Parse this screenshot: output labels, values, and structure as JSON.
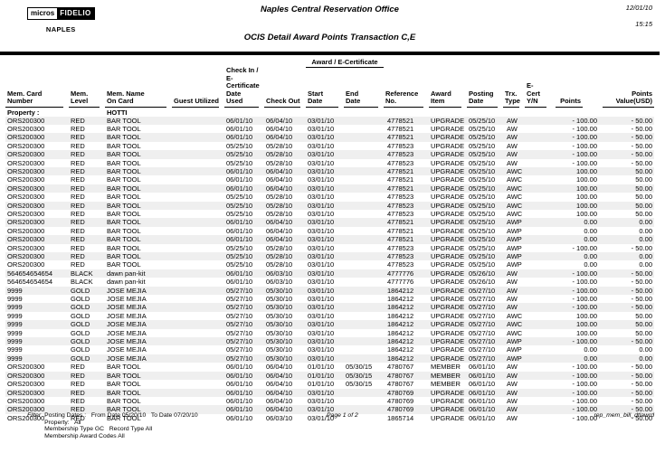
{
  "meta": {
    "date": "12/01/10",
    "time": "15:15"
  },
  "logo": {
    "brand_left": "micros",
    "brand_right": "FIDELIO",
    "property": "NAPLES"
  },
  "titles": {
    "office": "Naples Central Reservation Office",
    "report": "OCIS Detail Award Points Transaction C,E"
  },
  "table": {
    "group_header": "Award / E-Certificate",
    "columns": [
      "Mem. Card\nNumber",
      "Mem.\nLevel",
      "Mem. Name\nOn Card",
      "Guest Utilized",
      "Check In /\nE-Certificate\nDate Used",
      "Check Out",
      "Start\nDate",
      "End\nDate",
      "Reference No.",
      "Award\nItem",
      "Posting\nDate",
      "Trx.\nType",
      "E-Cert\nY/N",
      "Points",
      "Points Value(USD)"
    ],
    "property_label": "Property :",
    "property_value": "HOTTI",
    "rows": [
      [
        "ORS200300",
        "RED",
        "BAR TOOL",
        "",
        "06/01/10",
        "06/04/10",
        "03/01/10",
        "",
        "4778521",
        "UPGRADE",
        "05/25/10",
        "AW",
        "",
        "- 100.00",
        "- 50.00"
      ],
      [
        "ORS200300",
        "RED",
        "BAR TOOL",
        "",
        "06/01/10",
        "06/04/10",
        "03/01/10",
        "",
        "4778521",
        "UPGRADE",
        "05/25/10",
        "AW",
        "",
        "- 100.00",
        "- 50.00"
      ],
      [
        "ORS200300",
        "RED",
        "BAR TOOL",
        "",
        "06/01/10",
        "06/04/10",
        "03/01/10",
        "",
        "4778521",
        "UPGRADE",
        "05/25/10",
        "AW",
        "",
        "- 100.00",
        "- 50.00"
      ],
      [
        "ORS200300",
        "RED",
        "BAR TOOL",
        "",
        "05/25/10",
        "05/28/10",
        "03/01/10",
        "",
        "4778523",
        "UPGRADE",
        "05/25/10",
        "AW",
        "",
        "- 100.00",
        "- 50.00"
      ],
      [
        "ORS200300",
        "RED",
        "BAR TOOL",
        "",
        "05/25/10",
        "05/28/10",
        "03/01/10",
        "",
        "4778523",
        "UPGRADE",
        "05/25/10",
        "AW",
        "",
        "- 100.00",
        "- 50.00"
      ],
      [
        "ORS200300",
        "RED",
        "BAR TOOL",
        "",
        "05/25/10",
        "05/28/10",
        "03/01/10",
        "",
        "4778523",
        "UPGRADE",
        "05/25/10",
        "AW",
        "",
        "- 100.00",
        "- 50.00"
      ],
      [
        "ORS200300",
        "RED",
        "BAR TOOL",
        "",
        "06/01/10",
        "06/04/10",
        "03/01/10",
        "",
        "4778521",
        "UPGRADE",
        "05/25/10",
        "AWC",
        "",
        "100.00",
        "50.00"
      ],
      [
        "ORS200300",
        "RED",
        "BAR TOOL",
        "",
        "06/01/10",
        "06/04/10",
        "03/01/10",
        "",
        "4778521",
        "UPGRADE",
        "05/25/10",
        "AWC",
        "",
        "100.00",
        "50.00"
      ],
      [
        "ORS200300",
        "RED",
        "BAR TOOL",
        "",
        "06/01/10",
        "06/04/10",
        "03/01/10",
        "",
        "4778521",
        "UPGRADE",
        "05/25/10",
        "AWC",
        "",
        "100.00",
        "50.00"
      ],
      [
        "ORS200300",
        "RED",
        "BAR TOOL",
        "",
        "05/25/10",
        "05/28/10",
        "03/01/10",
        "",
        "4778523",
        "UPGRADE",
        "05/25/10",
        "AWC",
        "",
        "100.00",
        "50.00"
      ],
      [
        "ORS200300",
        "RED",
        "BAR TOOL",
        "",
        "05/25/10",
        "05/28/10",
        "03/01/10",
        "",
        "4778523",
        "UPGRADE",
        "05/25/10",
        "AWC",
        "",
        "100.00",
        "50.00"
      ],
      [
        "ORS200300",
        "RED",
        "BAR TOOL",
        "",
        "05/25/10",
        "05/28/10",
        "03/01/10",
        "",
        "4778523",
        "UPGRADE",
        "05/25/10",
        "AWC",
        "",
        "100.00",
        "50.00"
      ],
      [
        "ORS200300",
        "RED",
        "BAR TOOL",
        "",
        "06/01/10",
        "06/04/10",
        "03/01/10",
        "",
        "4778521",
        "UPGRADE",
        "05/25/10",
        "AWP",
        "",
        "0.00",
        "0.00"
      ],
      [
        "ORS200300",
        "RED",
        "BAR TOOL",
        "",
        "06/01/10",
        "06/04/10",
        "03/01/10",
        "",
        "4778521",
        "UPGRADE",
        "05/25/10",
        "AWP",
        "",
        "0.00",
        "0.00"
      ],
      [
        "ORS200300",
        "RED",
        "BAR TOOL",
        "",
        "06/01/10",
        "06/04/10",
        "03/01/10",
        "",
        "4778521",
        "UPGRADE",
        "05/25/10",
        "AWP",
        "",
        "0.00",
        "0.00"
      ],
      [
        "ORS200300",
        "RED",
        "BAR TOOL",
        "",
        "05/25/10",
        "05/28/10",
        "03/01/10",
        "",
        "4778523",
        "UPGRADE",
        "05/25/10",
        "AWP",
        "",
        "- 100.00",
        "- 50.00"
      ],
      [
        "ORS200300",
        "RED",
        "BAR TOOL",
        "",
        "05/25/10",
        "05/28/10",
        "03/01/10",
        "",
        "4778523",
        "UPGRADE",
        "05/25/10",
        "AWP",
        "",
        "0.00",
        "0.00"
      ],
      [
        "ORS200300",
        "RED",
        "BAR TOOL",
        "",
        "05/25/10",
        "05/28/10",
        "03/01/10",
        "",
        "4778523",
        "UPGRADE",
        "05/25/10",
        "AWP",
        "",
        "0.00",
        "0.00"
      ],
      [
        "564654654654",
        "BLACK",
        "dawn pan-kit",
        "",
        "06/01/10",
        "06/03/10",
        "03/01/10",
        "",
        "4777776",
        "UPGRADE",
        "05/26/10",
        "AW",
        "",
        "- 100.00",
        "- 50.00"
      ],
      [
        "564654654654",
        "BLACK",
        "dawn pan-kit",
        "",
        "06/01/10",
        "06/03/10",
        "03/01/10",
        "",
        "4777776",
        "UPGRADE",
        "05/26/10",
        "AW",
        "",
        "- 100.00",
        "- 50.00"
      ],
      [
        "9999",
        "GOLD",
        "JOSE MEJIA",
        "",
        "05/27/10",
        "05/30/10",
        "03/01/10",
        "",
        "1864212",
        "UPGRADE",
        "05/27/10",
        "AW",
        "",
        "- 100.00",
        "- 50.00"
      ],
      [
        "9999",
        "GOLD",
        "JOSE MEJIA",
        "",
        "05/27/10",
        "05/30/10",
        "03/01/10",
        "",
        "1864212",
        "UPGRADE",
        "05/27/10",
        "AW",
        "",
        "- 100.00",
        "- 50.00"
      ],
      [
        "9999",
        "GOLD",
        "JOSE MEJIA",
        "",
        "05/27/10",
        "05/30/10",
        "03/01/10",
        "",
        "1864212",
        "UPGRADE",
        "05/27/10",
        "AW",
        "",
        "- 100.00",
        "- 50.00"
      ],
      [
        "9999",
        "GOLD",
        "JOSE MEJIA",
        "",
        "05/27/10",
        "05/30/10",
        "03/01/10",
        "",
        "1864212",
        "UPGRADE",
        "05/27/10",
        "AWC",
        "",
        "100.00",
        "50.00"
      ],
      [
        "9999",
        "GOLD",
        "JOSE MEJIA",
        "",
        "05/27/10",
        "05/30/10",
        "03/01/10",
        "",
        "1864212",
        "UPGRADE",
        "05/27/10",
        "AWC",
        "",
        "100.00",
        "50.00"
      ],
      [
        "9999",
        "GOLD",
        "JOSE MEJIA",
        "",
        "05/27/10",
        "05/30/10",
        "03/01/10",
        "",
        "1864212",
        "UPGRADE",
        "05/27/10",
        "AWC",
        "",
        "100.00",
        "50.00"
      ],
      [
        "9999",
        "GOLD",
        "JOSE MEJIA",
        "",
        "05/27/10",
        "05/30/10",
        "03/01/10",
        "",
        "1864212",
        "UPGRADE",
        "05/27/10",
        "AWP",
        "",
        "- 100.00",
        "- 50.00"
      ],
      [
        "9999",
        "GOLD",
        "JOSE MEJIA",
        "",
        "05/27/10",
        "05/30/10",
        "03/01/10",
        "",
        "1864212",
        "UPGRADE",
        "05/27/10",
        "AWP",
        "",
        "0.00",
        "0.00"
      ],
      [
        "9999",
        "GOLD",
        "JOSE MEJIA",
        "",
        "05/27/10",
        "05/30/10",
        "03/01/10",
        "",
        "1864212",
        "UPGRADE",
        "05/27/10",
        "AWP",
        "",
        "0.00",
        "0.00"
      ],
      [
        "ORS200300",
        "RED",
        "BAR TOOL",
        "",
        "06/01/10",
        "06/04/10",
        "01/01/10",
        "05/30/15",
        "4780767",
        "MEMBER",
        "06/01/10",
        "AW",
        "",
        "- 100.00",
        "- 50.00"
      ],
      [
        "ORS200300",
        "RED",
        "BAR TOOL",
        "",
        "06/01/10",
        "06/04/10",
        "01/01/10",
        "05/30/15",
        "4780767",
        "MEMBER",
        "06/01/10",
        "AW",
        "",
        "- 100.00",
        "- 50.00"
      ],
      [
        "ORS200300",
        "RED",
        "BAR TOOL",
        "",
        "06/01/10",
        "06/04/10",
        "01/01/10",
        "05/30/15",
        "4780767",
        "MEMBER",
        "06/01/10",
        "AW",
        "",
        "- 100.00",
        "- 50.00"
      ],
      [
        "ORS200300",
        "RED",
        "BAR TOOL",
        "",
        "06/01/10",
        "06/04/10",
        "03/01/10",
        "",
        "4780769",
        "UPGRADE",
        "06/01/10",
        "AW",
        "",
        "- 100.00",
        "- 50.00"
      ],
      [
        "ORS200300",
        "RED",
        "BAR TOOL",
        "",
        "06/01/10",
        "06/04/10",
        "03/01/10",
        "",
        "4780769",
        "UPGRADE",
        "06/01/10",
        "AW",
        "",
        "- 100.00",
        "- 50.00"
      ],
      [
        "ORS200300",
        "RED",
        "BAR TOOL",
        "",
        "06/01/10",
        "06/04/10",
        "03/01/10",
        "",
        "4780769",
        "UPGRADE",
        "06/01/10",
        "AW",
        "",
        "- 100.00",
        "- 50.00"
      ],
      [
        "ORS200300",
        "RED",
        "BAR TOOL",
        "",
        "06/01/10",
        "06/03/10",
        "03/01/10",
        "",
        "1865714",
        "UPGRADE",
        "06/01/10",
        "AW",
        "",
        "- 100.00",
        "- 50.00"
      ]
    ]
  },
  "footer": {
    "filter_label": "Filter",
    "filter_lines": [
      "Posting Dates :   From Date 05/20/10   To Date 07/20/10",
      "Property:   All",
      "Membership Type GC   Record Type All",
      "Membership Award Codes All"
    ],
    "page": "Page 1 of 2",
    "report_id": "rep_mem_bill_dtlawrd"
  }
}
